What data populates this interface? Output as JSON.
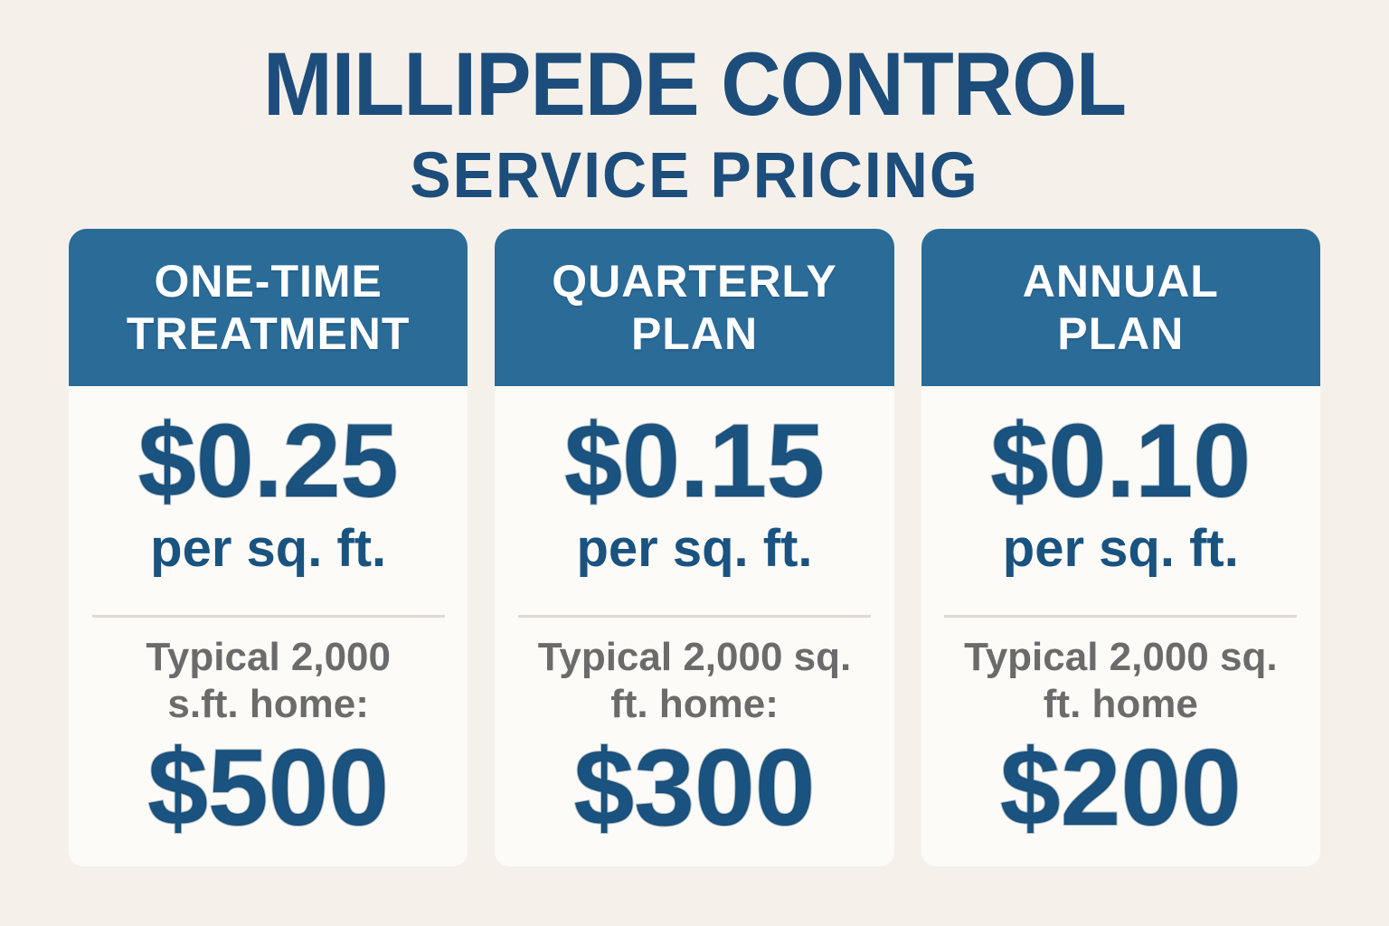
{
  "page": {
    "title": "MILLIPEDE CONTROL",
    "subtitle": "SERVICE PRICING"
  },
  "colors": {
    "background": "#F5F1EA",
    "card_background": "#FCFBF8",
    "header_blue": "#2B6B98",
    "price_blue": "#1A5380",
    "title_blue": "#1D4D7B",
    "note_gray": "#6B6B6B",
    "divider_gray": "#DCDAD4"
  },
  "cards": [
    {
      "header_line1": "ONE-TIME",
      "header_line2": "TREATMENT",
      "rate": "$0.25",
      "rate_unit": "per sq. ft.",
      "note_line1": "Typical 2,000",
      "note_line2": "s.ft. home:",
      "total": "$500"
    },
    {
      "header_line1": "QUARTERLY",
      "header_line2": "PLAN",
      "rate": "$0.15",
      "rate_unit": "per sq. ft.",
      "note_line1": "Typical 2,000 sq.",
      "note_line2": "ft. home:",
      "total": "$300"
    },
    {
      "header_line1": "ANNUAL",
      "header_line2": "PLAN",
      "rate": "$0.10",
      "rate_unit": "per sq. ft.",
      "note_line1": "Typical 2,000 sq.",
      "note_line2": "ft. home",
      "total": "$200"
    }
  ]
}
